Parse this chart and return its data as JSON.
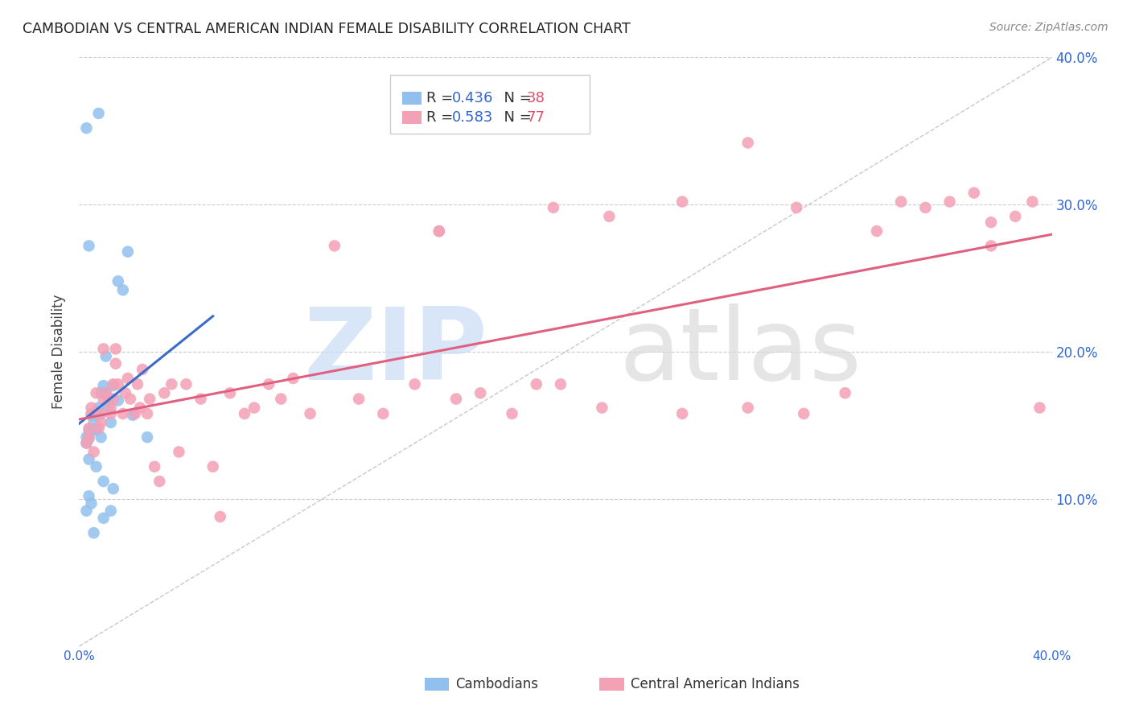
{
  "title": "CAMBODIAN VS CENTRAL AMERICAN INDIAN FEMALE DISABILITY CORRELATION CHART",
  "source": "Source: ZipAtlas.com",
  "ylabel": "Female Disability",
  "xlim": [
    0.0,
    0.4
  ],
  "ylim": [
    0.0,
    0.4
  ],
  "background_color": "#ffffff",
  "grid_color": "#cccccc",
  "cambodian_color": "#92C0EE",
  "central_american_color": "#F4A0B5",
  "cambodian_line_color": "#3B6CC7",
  "central_american_line_color": "#E06080",
  "diagonal_line_color": "#c8c8c8",
  "legend_R1": "0.436",
  "legend_N1": "38",
  "legend_R2": "0.583",
  "legend_N2": "77",
  "r_color": "#3366CC",
  "n_color": "#E05070",
  "title_color": "#222222",
  "source_color": "#888888",
  "axis_color": "#3366CC",
  "ylabel_color": "#444444",
  "cambodian_x": [
    0.003,
    0.006,
    0.004,
    0.007,
    0.008,
    0.009,
    0.01,
    0.008,
    0.006,
    0.012,
    0.014,
    0.011,
    0.018,
    0.016,
    0.02,
    0.003,
    0.004,
    0.005,
    0.009,
    0.013,
    0.016,
    0.004,
    0.007,
    0.01,
    0.014,
    0.003,
    0.006,
    0.01,
    0.013,
    0.022,
    0.004,
    0.011,
    0.008,
    0.003,
    0.004,
    0.005,
    0.012,
    0.028
  ],
  "cambodian_y": [
    0.138,
    0.152,
    0.141,
    0.147,
    0.162,
    0.172,
    0.177,
    0.157,
    0.147,
    0.167,
    0.177,
    0.172,
    0.242,
    0.248,
    0.268,
    0.092,
    0.102,
    0.097,
    0.142,
    0.152,
    0.167,
    0.127,
    0.122,
    0.112,
    0.107,
    0.142,
    0.077,
    0.087,
    0.092,
    0.157,
    0.272,
    0.197,
    0.362,
    0.352,
    0.147,
    0.157,
    0.162,
    0.142
  ],
  "central_american_x": [
    0.003,
    0.004,
    0.004,
    0.005,
    0.005,
    0.006,
    0.007,
    0.008,
    0.009,
    0.009,
    0.01,
    0.01,
    0.011,
    0.013,
    0.013,
    0.014,
    0.014,
    0.015,
    0.015,
    0.016,
    0.018,
    0.019,
    0.02,
    0.021,
    0.023,
    0.024,
    0.025,
    0.026,
    0.028,
    0.029,
    0.031,
    0.033,
    0.035,
    0.038,
    0.041,
    0.044,
    0.05,
    0.055,
    0.058,
    0.062,
    0.068,
    0.072,
    0.078,
    0.083,
    0.088,
    0.095,
    0.105,
    0.115,
    0.125,
    0.138,
    0.148,
    0.155,
    0.165,
    0.178,
    0.188,
    0.198,
    0.215,
    0.248,
    0.275,
    0.295,
    0.315,
    0.328,
    0.338,
    0.348,
    0.358,
    0.368,
    0.375,
    0.385,
    0.392,
    0.395,
    0.375,
    0.298,
    0.275,
    0.248,
    0.218,
    0.195,
    0.148
  ],
  "central_american_y": [
    0.138,
    0.142,
    0.148,
    0.158,
    0.162,
    0.132,
    0.172,
    0.148,
    0.152,
    0.158,
    0.168,
    0.202,
    0.172,
    0.158,
    0.162,
    0.168,
    0.178,
    0.192,
    0.202,
    0.178,
    0.158,
    0.172,
    0.182,
    0.168,
    0.158,
    0.178,
    0.162,
    0.188,
    0.158,
    0.168,
    0.122,
    0.112,
    0.172,
    0.178,
    0.132,
    0.178,
    0.168,
    0.122,
    0.088,
    0.172,
    0.158,
    0.162,
    0.178,
    0.168,
    0.182,
    0.158,
    0.272,
    0.168,
    0.158,
    0.178,
    0.282,
    0.168,
    0.172,
    0.158,
    0.178,
    0.178,
    0.162,
    0.158,
    0.162,
    0.298,
    0.172,
    0.282,
    0.302,
    0.298,
    0.302,
    0.308,
    0.288,
    0.292,
    0.302,
    0.162,
    0.272,
    0.158,
    0.342,
    0.302,
    0.292,
    0.298,
    0.282
  ]
}
